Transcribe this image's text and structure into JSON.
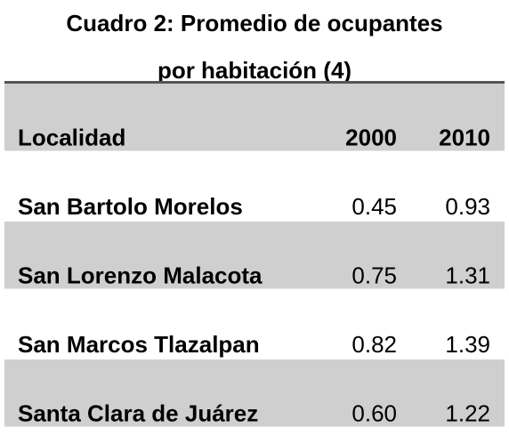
{
  "title": [
    "Cuadro 2: Promedio de ocupantes",
    "por habitación (4)"
  ],
  "table": {
    "header": [
      "Localidad",
      "2000",
      "2010"
    ],
    "rows": [
      [
        "San Bartolo Morelos",
        "0.45",
        "0.93"
      ],
      [
        "San Lorenzo Malacota",
        "0.75",
        "1.31"
      ],
      [
        "San Marcos Tlazalpan",
        "0.82",
        "1.39"
      ],
      [
        "Santa Clara de Juárez",
        "0.60",
        "1.22"
      ]
    ]
  }
}
